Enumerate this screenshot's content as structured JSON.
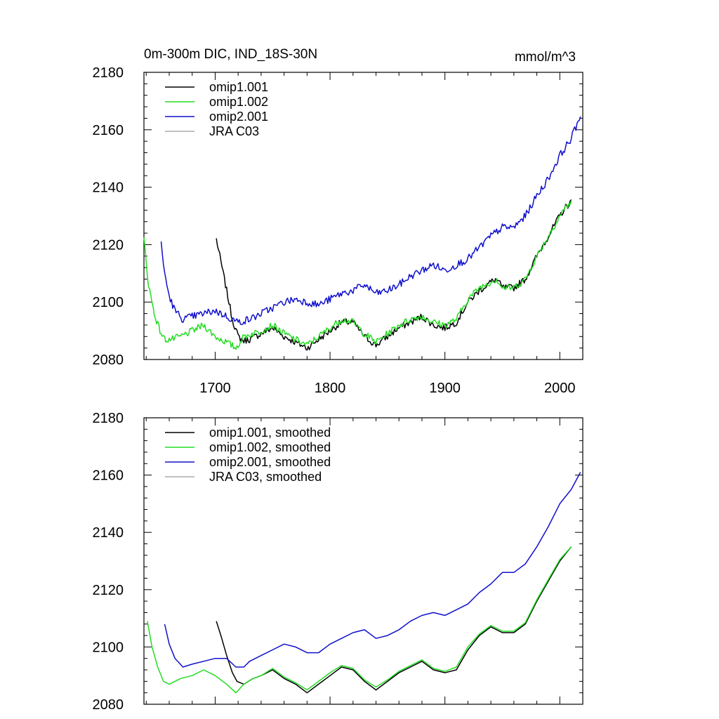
{
  "figure": {
    "title_left": "0m-300m DIC, IND_18S-30N",
    "title_right": "mmol/m^3"
  },
  "colors": {
    "omip1_001": "#000000",
    "omip1_002": "#22dd22",
    "omip2_001": "#1010cc",
    "jra_c03": "#aaaaaa"
  },
  "chart_data": [
    {
      "type": "line",
      "xlim": [
        1638,
        2020
      ],
      "ylim": [
        2080,
        2180
      ],
      "x_ticks": [
        1700,
        1800,
        1900,
        2000
      ],
      "y_ticks": [
        2080,
        2100,
        2120,
        2140,
        2160,
        2180
      ],
      "x_tick_labels_shown": true,
      "legend_position": "top-left",
      "series": [
        {
          "name": "omip1.001",
          "color": "#000000",
          "noise": 1.2,
          "points": [
            [
              1701,
              2122
            ],
            [
              1705,
              2114
            ],
            [
              1710,
              2104
            ],
            [
              1715,
              2094
            ],
            [
              1720,
              2088
            ],
            [
              1725,
              2086.5
            ],
            [
              1730,
              2087
            ],
            [
              1740,
              2089
            ],
            [
              1750,
              2091
            ],
            [
              1760,
              2088
            ],
            [
              1770,
              2086
            ],
            [
              1780,
              2084
            ],
            [
              1790,
              2087
            ],
            [
              1800,
              2090
            ],
            [
              1810,
              2093
            ],
            [
              1820,
              2093
            ],
            [
              1830,
              2088
            ],
            [
              1840,
              2085
            ],
            [
              1850,
              2088
            ],
            [
              1860,
              2091
            ],
            [
              1870,
              2093
            ],
            [
              1880,
              2095
            ],
            [
              1890,
              2092
            ],
            [
              1900,
              2091
            ],
            [
              1910,
              2093
            ],
            [
              1920,
              2100
            ],
            [
              1930,
              2104
            ],
            [
              1940,
              2107
            ],
            [
              1945,
              2108
            ],
            [
              1950,
              2105
            ],
            [
              1960,
              2105
            ],
            [
              1970,
              2108
            ],
            [
              1980,
              2116
            ],
            [
              1990,
              2123
            ],
            [
              2000,
              2130
            ],
            [
              2005,
              2133
            ],
            [
              2010,
              2135
            ]
          ]
        },
        {
          "name": "omip1.002",
          "color": "#22dd22",
          "noise": 1.2,
          "points": [
            [
              1638,
              2122
            ],
            [
              1642,
              2106
            ],
            [
              1647,
              2096
            ],
            [
              1652,
              2090
            ],
            [
              1656,
              2087
            ],
            [
              1662,
              2087
            ],
            [
              1670,
              2088
            ],
            [
              1680,
              2090
            ],
            [
              1690,
              2092
            ],
            [
              1700,
              2088
            ],
            [
              1710,
              2086
            ],
            [
              1718,
              2084
            ],
            [
              1725,
              2088
            ],
            [
              1740,
              2090
            ],
            [
              1750,
              2092
            ],
            [
              1760,
              2089
            ],
            [
              1770,
              2087
            ],
            [
              1780,
              2085
            ],
            [
              1790,
              2088
            ],
            [
              1800,
              2091
            ],
            [
              1810,
              2094
            ],
            [
              1820,
              2093
            ],
            [
              1830,
              2089
            ],
            [
              1840,
              2086
            ],
            [
              1850,
              2089
            ],
            [
              1860,
              2092
            ],
            [
              1870,
              2094
            ],
            [
              1880,
              2095
            ],
            [
              1890,
              2093
            ],
            [
              1900,
              2092
            ],
            [
              1910,
              2094
            ],
            [
              1920,
              2101
            ],
            [
              1930,
              2105
            ],
            [
              1940,
              2107
            ],
            [
              1945,
              2108
            ],
            [
              1950,
              2105
            ],
            [
              1960,
              2105
            ],
            [
              1970,
              2108
            ],
            [
              1980,
              2116
            ],
            [
              1990,
              2123
            ],
            [
              2000,
              2130
            ],
            [
              2005,
              2133
            ],
            [
              2010,
              2135
            ]
          ]
        },
        {
          "name": "omip2.001",
          "color": "#1010cc",
          "noise": 1.3,
          "points": [
            [
              1653,
              2120
            ],
            [
              1656,
              2110
            ],
            [
              1660,
              2102
            ],
            [
              1665,
              2097
            ],
            [
              1672,
              2094
            ],
            [
              1680,
              2095
            ],
            [
              1690,
              2096
            ],
            [
              1700,
              2097
            ],
            [
              1710,
              2095
            ],
            [
              1720,
              2093
            ],
            [
              1730,
              2094
            ],
            [
              1740,
              2096
            ],
            [
              1750,
              2098
            ],
            [
              1760,
              2100
            ],
            [
              1770,
              2101
            ],
            [
              1780,
              2100
            ],
            [
              1790,
              2099
            ],
            [
              1800,
              2101
            ],
            [
              1810,
              2103
            ],
            [
              1820,
              2104
            ],
            [
              1830,
              2106
            ],
            [
              1840,
              2103
            ],
            [
              1850,
              2104
            ],
            [
              1860,
              2106
            ],
            [
              1870,
              2109
            ],
            [
              1880,
              2111
            ],
            [
              1890,
              2113
            ],
            [
              1900,
              2111
            ],
            [
              1910,
              2113
            ],
            [
              1920,
              2115
            ],
            [
              1930,
              2119
            ],
            [
              1940,
              2123
            ],
            [
              1950,
              2126
            ],
            [
              1960,
              2126
            ],
            [
              1970,
              2130
            ],
            [
              1980,
              2137
            ],
            [
              1990,
              2143
            ],
            [
              2000,
              2151
            ],
            [
              2010,
              2157
            ],
            [
              2018,
              2165
            ]
          ]
        },
        {
          "name": "JRA C03",
          "color": "#aaaaaa",
          "noise": 0,
          "points": []
        }
      ]
    },
    {
      "type": "line",
      "xlim": [
        1638,
        2020
      ],
      "ylim": [
        2080,
        2180
      ],
      "x_ticks": [
        1700,
        1800,
        1900,
        2000
      ],
      "y_ticks": [
        2080,
        2100,
        2120,
        2140,
        2160,
        2180
      ],
      "x_tick_labels_shown": false,
      "legend_position": "top-left",
      "series": [
        {
          "name": "omip1.001, smoothed",
          "color": "#000000",
          "noise": 0,
          "points": [
            [
              1701,
              2109
            ],
            [
              1705,
              2104
            ],
            [
              1710,
              2097
            ],
            [
              1715,
              2091
            ],
            [
              1719,
              2088
            ],
            [
              1725,
              2087
            ],
            [
              1733,
              2089
            ],
            [
              1740,
              2090
            ],
            [
              1750,
              2092
            ],
            [
              1760,
              2089
            ],
            [
              1770,
              2087
            ],
            [
              1780,
              2084
            ],
            [
              1790,
              2087
            ],
            [
              1800,
              2090
            ],
            [
              1810,
              2093
            ],
            [
              1820,
              2092
            ],
            [
              1830,
              2088
            ],
            [
              1840,
              2085
            ],
            [
              1850,
              2088
            ],
            [
              1860,
              2091
            ],
            [
              1870,
              2093
            ],
            [
              1880,
              2095
            ],
            [
              1890,
              2092
            ],
            [
              1900,
              2091
            ],
            [
              1910,
              2092
            ],
            [
              1920,
              2099
            ],
            [
              1930,
              2104
            ],
            [
              1940,
              2107
            ],
            [
              1950,
              2105
            ],
            [
              1960,
              2105
            ],
            [
              1970,
              2108
            ],
            [
              1980,
              2116
            ],
            [
              1990,
              2123
            ],
            [
              2000,
              2130
            ],
            [
              2010,
              2135
            ]
          ]
        },
        {
          "name": "omip1.002, smoothed",
          "color": "#22dd22",
          "noise": 0,
          "points": [
            [
              1641,
              2109
            ],
            [
              1645,
              2100
            ],
            [
              1650,
              2093
            ],
            [
              1655,
              2088
            ],
            [
              1660,
              2087
            ],
            [
              1670,
              2089
            ],
            [
              1680,
              2090
            ],
            [
              1690,
              2092
            ],
            [
              1700,
              2090
            ],
            [
              1710,
              2087
            ],
            [
              1718,
              2084
            ],
            [
              1725,
              2087
            ],
            [
              1733,
              2089
            ],
            [
              1740,
              2090
            ],
            [
              1750,
              2092.5
            ],
            [
              1760,
              2089.5
            ],
            [
              1770,
              2087.5
            ],
            [
              1780,
              2085
            ],
            [
              1790,
              2088
            ],
            [
              1800,
              2091
            ],
            [
              1810,
              2093.5
            ],
            [
              1820,
              2092.5
            ],
            [
              1830,
              2088.5
            ],
            [
              1840,
              2086
            ],
            [
              1850,
              2088.5
            ],
            [
              1860,
              2091.5
            ],
            [
              1870,
              2093.5
            ],
            [
              1880,
              2095.5
            ],
            [
              1890,
              2092.5
            ],
            [
              1900,
              2091.5
            ],
            [
              1910,
              2093
            ],
            [
              1920,
              2100
            ],
            [
              1930,
              2104.5
            ],
            [
              1940,
              2107.5
            ],
            [
              1950,
              2105.5
            ],
            [
              1960,
              2105.5
            ],
            [
              1970,
              2108.5
            ],
            [
              1980,
              2116.5
            ],
            [
              1990,
              2123.5
            ],
            [
              2000,
              2130.5
            ],
            [
              2010,
              2135
            ]
          ]
        },
        {
          "name": "omip2.001, smoothed",
          "color": "#1010cc",
          "noise": 0,
          "points": [
            [
              1656,
              2108
            ],
            [
              1660,
              2101
            ],
            [
              1665,
              2096
            ],
            [
              1672,
              2093
            ],
            [
              1680,
              2094
            ],
            [
              1690,
              2095
            ],
            [
              1700,
              2096
            ],
            [
              1710,
              2096
            ],
            [
              1718,
              2093
            ],
            [
              1725,
              2093
            ],
            [
              1730,
              2095
            ],
            [
              1740,
              2097
            ],
            [
              1750,
              2099
            ],
            [
              1760,
              2101
            ],
            [
              1770,
              2100
            ],
            [
              1780,
              2098
            ],
            [
              1790,
              2098
            ],
            [
              1800,
              2101
            ],
            [
              1810,
              2103
            ],
            [
              1820,
              2105
            ],
            [
              1830,
              2106
            ],
            [
              1840,
              2103
            ],
            [
              1850,
              2104
            ],
            [
              1860,
              2106
            ],
            [
              1870,
              2109
            ],
            [
              1880,
              2111
            ],
            [
              1890,
              2112
            ],
            [
              1900,
              2111
            ],
            [
              1910,
              2113
            ],
            [
              1920,
              2115
            ],
            [
              1930,
              2119
            ],
            [
              1940,
              2122
            ],
            [
              1950,
              2126
            ],
            [
              1960,
              2126
            ],
            [
              1970,
              2129
            ],
            [
              1980,
              2135
            ],
            [
              1990,
              2142
            ],
            [
              2000,
              2150
            ],
            [
              2010,
              2155
            ],
            [
              2018,
              2161
            ]
          ]
        },
        {
          "name": "JRA C03, smoothed",
          "color": "#aaaaaa",
          "noise": 0,
          "points": []
        }
      ]
    }
  ]
}
